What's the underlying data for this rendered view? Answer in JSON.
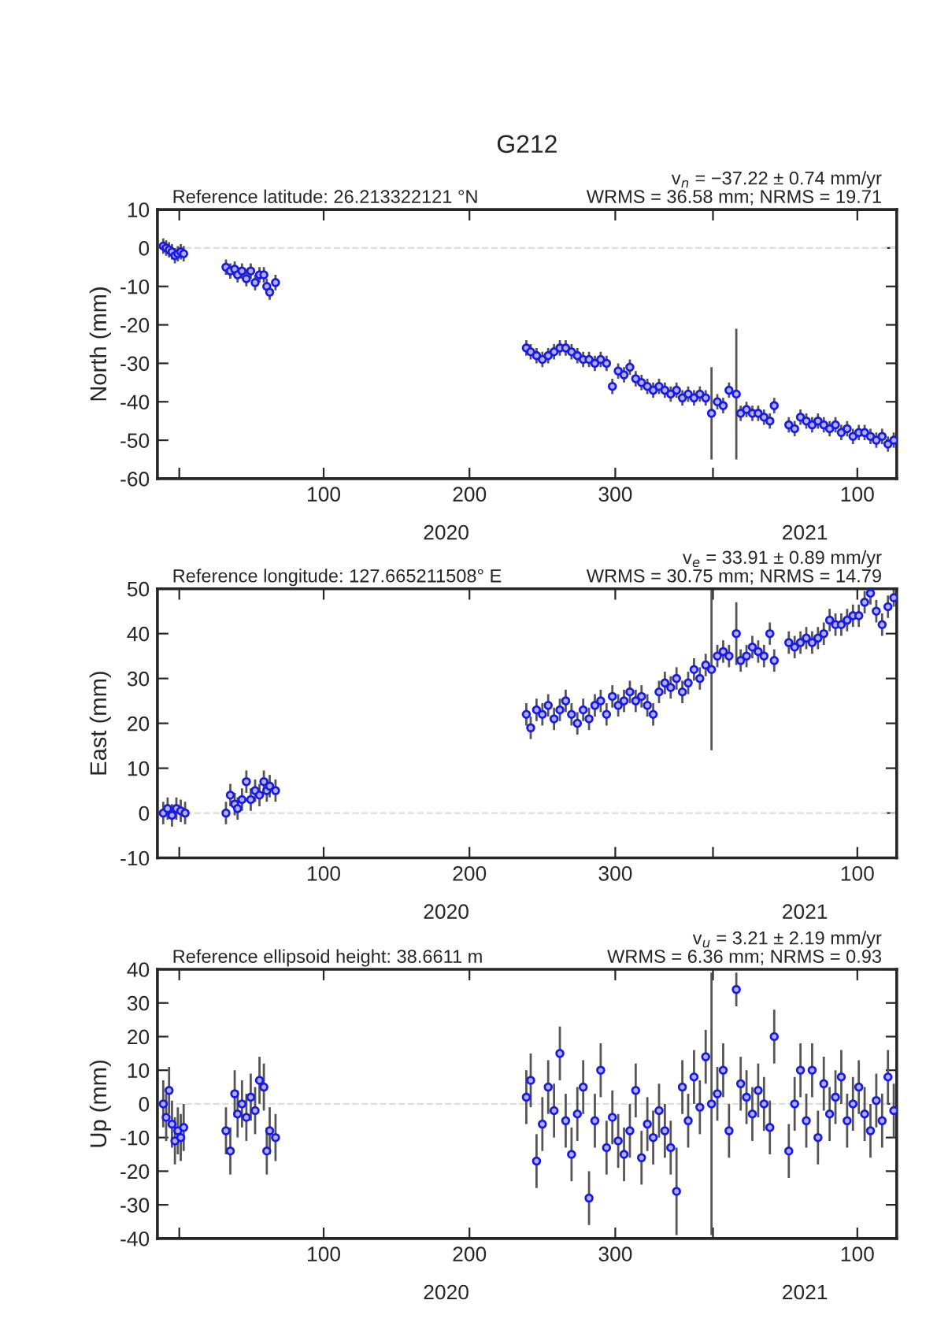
{
  "chart_data": [
    {
      "type": "scatter",
      "title": "G212",
      "ylabel": "North (mm)",
      "annotations": [
        "Reference latitude: 26.213322121 °N",
        "v$_{n}$ = −37.22 ± 0.74 mm/yr",
        "WRMS = 36.58 mm; NRMS = 19.71",
        "2020",
        "2021"
      ],
      "x": [
        "2019-12-21",
        "2019-12-23",
        "2019-12-25",
        "2019-12-27",
        "2019-12-29",
        "2019-12-31",
        "2020-01-02",
        "2020-01-04",
        "2020-02-02",
        "2020-02-05",
        "2020-02-08",
        "2020-02-10",
        "2020-02-13",
        "2020-02-16",
        "2020-02-19",
        "2020-02-22",
        "2020-02-25",
        "2020-02-28",
        "2020-03-01",
        "2020-03-03",
        "2020-03-07",
        "2020-08-26",
        "2020-08-29",
        "2020-09-02",
        "2020-09-06",
        "2020-09-10",
        "2020-09-14",
        "2020-09-18",
        "2020-09-22",
        "2020-09-26",
        "2020-09-30",
        "2020-10-04",
        "2020-10-08",
        "2020-10-12",
        "2020-10-16",
        "2020-10-20",
        "2020-10-24",
        "2020-10-28",
        "2020-11-01",
        "2020-11-05",
        "2020-11-09",
        "2020-11-13",
        "2020-11-17",
        "2020-11-21",
        "2020-11-25",
        "2020-11-29",
        "2020-12-03",
        "2020-12-07",
        "2020-12-11",
        "2020-12-15",
        "2020-12-19",
        "2020-12-23",
        "2020-12-27",
        "2020-12-31",
        "2021-01-04",
        "2021-01-08",
        "2021-01-12",
        "2021-01-17",
        "2021-01-20",
        "2021-01-24",
        "2021-01-28",
        "2021-02-01",
        "2021-02-05",
        "2021-02-09",
        "2021-02-12",
        "2021-02-22",
        "2021-02-26",
        "2021-03-02",
        "2021-03-06",
        "2021-03-10",
        "2021-03-14",
        "2021-03-18",
        "2021-03-22",
        "2021-03-26",
        "2021-03-30",
        "2021-04-03",
        "2021-04-07",
        "2021-04-11",
        "2021-04-15",
        "2021-04-19",
        "2021-04-23",
        "2021-04-27",
        "2021-05-01",
        "2021-05-05"
      ],
      "values": [
        0.5,
        0,
        -0.5,
        -1,
        -2,
        -1.5,
        -1,
        -1.5,
        -5,
        -6,
        -5.5,
        -7,
        -6,
        -8,
        -6,
        -9,
        -7,
        -7,
        -10,
        -11.5,
        -9,
        -26,
        -27,
        -28,
        -29,
        -28,
        -27,
        -26,
        -26,
        -27,
        -28,
        -29,
        -29,
        -30,
        -29,
        -30,
        -36,
        -32,
        -33,
        -31,
        -34,
        -35,
        -36,
        -37,
        -36,
        -37,
        -38,
        -37,
        -39,
        -38,
        -39,
        -38,
        -39,
        -43,
        -40,
        -41,
        -37,
        -38,
        -43,
        -42,
        -43,
        -43,
        -44,
        -45,
        -41,
        -46,
        -47,
        -44,
        -45,
        -46,
        -45,
        -46,
        -47,
        -46,
        -48,
        -47,
        -49,
        -48,
        -48,
        -49,
        -50,
        -49,
        -51,
        -50
      ],
      "errors": [
        2,
        2,
        2,
        2,
        2,
        2,
        2,
        2,
        2,
        2,
        2,
        2,
        2,
        2,
        2,
        2,
        2,
        2,
        2,
        2,
        2,
        2,
        2,
        2,
        2,
        2,
        2,
        2,
        2,
        2,
        2,
        2,
        2,
        2,
        2,
        2,
        2,
        2,
        2,
        2,
        2,
        2,
        2,
        2,
        2,
        2,
        2,
        2,
        2,
        2,
        2,
        2,
        2,
        12,
        2,
        2,
        2,
        17,
        2,
        2,
        2,
        2,
        2,
        2,
        2,
        2,
        2,
        2,
        2,
        2,
        2,
        2,
        2,
        2,
        2,
        2,
        2,
        2,
        2,
        2,
        2,
        2,
        2,
        2
      ],
      "color": "#1a1ae6",
      "marker": "circle",
      "xlim": [
        "2019-12-17",
        "2021-05-07"
      ],
      "xticks": [
        {
          "value": "2020-01-01",
          "label": null
        },
        {
          "value": "2020-04-09",
          "label": "100"
        },
        {
          "value": "2020-07-18",
          "label": "200"
        },
        {
          "value": "2020-10-26",
          "label": "300"
        },
        {
          "value": "2021-01-01",
          "label": null
        },
        {
          "value": "2021-04-10",
          "label": "100"
        }
      ],
      "ylim": [
        -60,
        10
      ],
      "yticks": [
        -60,
        -50,
        -40,
        -30,
        -20,
        -10,
        0,
        10
      ],
      "ref_lines": [
        {
          "axis": "y",
          "value": 0,
          "color": "#dddddd",
          "line_style": "dashed"
        }
      ]
    },
    {
      "type": "scatter",
      "ylabel": "East (mm)",
      "annotations": [
        "Reference longitude: 127.665211508° E",
        "v$_{e}$ = 33.91 ± 0.89 mm/yr",
        "WRMS = 30.75 mm; NRMS = 14.79",
        "2020",
        "2021"
      ],
      "x": [
        "2019-12-21",
        "2019-12-24",
        "2019-12-27",
        "2019-12-30",
        "2020-01-02",
        "2020-01-05",
        "2020-02-02",
        "2020-02-05",
        "2020-02-08",
        "2020-02-10",
        "2020-02-13",
        "2020-02-16",
        "2020-02-19",
        "2020-02-22",
        "2020-02-25",
        "2020-02-28",
        "2020-03-01",
        "2020-03-03",
        "2020-03-07",
        "2020-08-26",
        "2020-08-29",
        "2020-09-02",
        "2020-09-06",
        "2020-09-10",
        "2020-09-14",
        "2020-09-18",
        "2020-09-22",
        "2020-09-26",
        "2020-09-30",
        "2020-10-04",
        "2020-10-08",
        "2020-10-12",
        "2020-10-16",
        "2020-10-20",
        "2020-10-24",
        "2020-10-28",
        "2020-11-01",
        "2020-11-05",
        "2020-11-09",
        "2020-11-13",
        "2020-11-17",
        "2020-11-21",
        "2020-11-25",
        "2020-11-29",
        "2020-12-03",
        "2020-12-07",
        "2020-12-11",
        "2020-12-15",
        "2020-12-19",
        "2020-12-23",
        "2020-12-27",
        "2020-12-31",
        "2021-01-04",
        "2021-01-08",
        "2021-01-12",
        "2021-01-17",
        "2021-01-20",
        "2021-01-24",
        "2021-01-28",
        "2021-02-01",
        "2021-02-05",
        "2021-02-09",
        "2021-02-12",
        "2021-02-22",
        "2021-02-26",
        "2021-03-02",
        "2021-03-06",
        "2021-03-10",
        "2021-03-14",
        "2021-03-18",
        "2021-03-22",
        "2021-03-26",
        "2021-03-30",
        "2021-04-03",
        "2021-04-07",
        "2021-04-11",
        "2021-04-15",
        "2021-04-19",
        "2021-04-23",
        "2021-04-27",
        "2021-05-01",
        "2021-05-05"
      ],
      "values": [
        0,
        1,
        -0.5,
        1,
        0.5,
        0,
        0,
        4,
        2,
        1,
        3,
        7,
        3,
        5,
        4,
        7,
        5,
        6,
        5,
        22,
        19,
        23,
        22,
        24,
        21,
        23,
        25,
        22,
        20,
        23,
        21,
        24,
        25,
        22,
        26,
        24,
        25,
        27,
        25,
        26,
        24,
        22,
        27,
        29,
        28,
        30,
        27,
        29,
        32,
        30,
        33,
        32,
        35,
        36,
        35,
        40,
        34,
        35,
        37,
        36,
        35,
        40,
        34,
        38,
        37,
        38,
        39,
        38,
        39,
        40,
        43,
        42,
        42,
        43,
        44,
        44,
        47,
        49,
        45,
        42,
        46,
        48
      ],
      "errors": [
        2.5,
        2.5,
        2.5,
        2.5,
        2.5,
        2.5,
        2.5,
        2.5,
        2.5,
        2.5,
        2.5,
        2.5,
        2.5,
        2.5,
        2.5,
        2.5,
        2.5,
        2.5,
        2.5,
        2.5,
        2.5,
        2.5,
        2.5,
        2.5,
        2.5,
        2.5,
        2.5,
        2.5,
        2.5,
        2.5,
        2.5,
        2.5,
        2.5,
        2.5,
        2.5,
        2.5,
        2.5,
        2.5,
        2.5,
        2.5,
        2.5,
        2.5,
        2.5,
        2.5,
        2.5,
        2.5,
        2.5,
        2.5,
        2.5,
        2.5,
        2.5,
        18,
        2.5,
        2.5,
        2.5,
        7,
        2.5,
        2.5,
        2.5,
        2.5,
        2.5,
        2.5,
        2.5,
        2.5,
        2.5,
        2.5,
        2.5,
        2.5,
        2.5,
        2.5,
        2.5,
        2.5,
        2.5,
        2.5,
        2.5,
        2.5,
        2.5,
        2.5,
        2.5,
        2.5,
        2.5,
        2
      ],
      "color": "#1a1ae6",
      "marker": "circle",
      "xlim": [
        "2019-12-17",
        "2021-05-07"
      ],
      "xticks": [
        {
          "value": "2020-01-01",
          "label": null
        },
        {
          "value": "2020-04-09",
          "label": "100"
        },
        {
          "value": "2020-07-18",
          "label": "200"
        },
        {
          "value": "2020-10-26",
          "label": "300"
        },
        {
          "value": "2021-01-01",
          "label": null
        },
        {
          "value": "2021-04-10",
          "label": "100"
        }
      ],
      "ylim": [
        -10,
        50
      ],
      "yticks": [
        -10,
        0,
        10,
        20,
        30,
        40,
        50
      ],
      "ref_lines": [
        {
          "axis": "y",
          "value": 0,
          "color": "#dddddd",
          "line_style": "dashed"
        }
      ]
    },
    {
      "type": "scatter",
      "ylabel": "Up (mm)",
      "annotations": [
        "Reference ellipsoid height: 38.6611 m",
        "v$_{u}$ = 3.21 ± 2.19 mm/yr",
        "WRMS = 6.36 mm; NRMS = 0.93",
        "2020",
        "2021"
      ],
      "x": [
        "2019-12-21",
        "2019-12-23",
        "2019-12-25",
        "2019-12-27",
        "2019-12-29",
        "2019-12-31",
        "2020-01-02",
        "2020-01-04",
        "2020-02-02",
        "2020-02-05",
        "2020-02-08",
        "2020-02-10",
        "2020-02-13",
        "2020-02-16",
        "2020-02-19",
        "2020-02-22",
        "2020-02-25",
        "2020-02-28",
        "2020-03-01",
        "2020-03-03",
        "2020-03-07",
        "2020-08-26",
        "2020-08-29",
        "2020-09-02",
        "2020-09-06",
        "2020-09-10",
        "2020-09-14",
        "2020-09-18",
        "2020-09-22",
        "2020-09-26",
        "2020-09-30",
        "2020-10-04",
        "2020-10-08",
        "2020-10-12",
        "2020-10-16",
        "2020-10-20",
        "2020-10-24",
        "2020-10-28",
        "2020-11-01",
        "2020-11-05",
        "2020-11-09",
        "2020-11-13",
        "2020-11-17",
        "2020-11-21",
        "2020-11-25",
        "2020-11-29",
        "2020-12-03",
        "2020-12-07",
        "2020-12-11",
        "2020-12-15",
        "2020-12-19",
        "2020-12-23",
        "2020-12-27",
        "2020-12-31",
        "2021-01-04",
        "2021-01-08",
        "2021-01-12",
        "2021-01-17",
        "2021-01-20",
        "2021-01-24",
        "2021-01-28",
        "2021-02-01",
        "2021-02-05",
        "2021-02-09",
        "2021-02-12",
        "2021-02-22",
        "2021-02-26",
        "2021-03-02",
        "2021-03-06",
        "2021-03-10",
        "2021-03-14",
        "2021-03-18",
        "2021-03-22",
        "2021-03-26",
        "2021-03-30",
        "2021-04-03",
        "2021-04-07",
        "2021-04-11",
        "2021-04-15",
        "2021-04-19",
        "2021-04-23",
        "2021-04-27",
        "2021-05-01",
        "2021-05-05"
      ],
      "values": [
        0,
        -4,
        4,
        -6,
        -11,
        -8,
        -10,
        -7,
        -8,
        -14,
        3,
        -3,
        0,
        -4,
        2,
        -2,
        7,
        5,
        -14,
        -8,
        -10,
        2,
        7,
        -17,
        -6,
        5,
        -2,
        15,
        -5,
        -15,
        -3,
        5,
        -28,
        -5,
        10,
        -13,
        -4,
        -11,
        -15,
        -8,
        4,
        -16,
        -6,
        -10,
        -2,
        -8,
        -13,
        -26,
        5,
        -5,
        8,
        -1,
        14,
        0,
        3,
        10,
        -8,
        34,
        6,
        2,
        -3,
        4,
        0,
        -7,
        20,
        -14,
        0,
        10,
        -5,
        10,
        -10,
        6,
        -3,
        2,
        8,
        -5,
        0,
        5,
        -3,
        -8,
        1,
        -5,
        8,
        -2
      ],
      "errors": [
        7,
        7,
        7,
        7,
        7,
        7,
        7,
        7,
        7,
        7,
        7,
        7,
        7,
        7,
        7,
        7,
        7,
        7,
        7,
        7,
        7,
        8,
        8,
        8,
        8,
        8,
        8,
        8,
        8,
        8,
        8,
        8,
        8,
        8,
        8,
        8,
        8,
        8,
        8,
        8,
        8,
        8,
        8,
        8,
        8,
        8,
        8,
        13,
        8,
        8,
        8,
        8,
        8,
        39,
        8,
        8,
        8,
        5,
        8,
        8,
        8,
        8,
        8,
        8,
        8,
        8,
        8,
        8,
        8,
        8,
        8,
        8,
        8,
        8,
        8,
        8,
        8,
        8,
        8,
        8,
        8,
        8,
        8,
        8
      ],
      "color": "#1a1ae6",
      "marker": "circle",
      "xlim": [
        "2019-12-17",
        "2021-05-07"
      ],
      "xticks": [
        {
          "value": "2020-01-01",
          "label": null
        },
        {
          "value": "2020-04-09",
          "label": "100"
        },
        {
          "value": "2020-07-18",
          "label": "200"
        },
        {
          "value": "2020-10-26",
          "label": "300"
        },
        {
          "value": "2021-01-01",
          "label": null
        },
        {
          "value": "2021-04-10",
          "label": "100"
        }
      ],
      "ylim": [
        -40,
        40
      ],
      "yticks": [
        -40,
        -30,
        -20,
        -10,
        0,
        10,
        20,
        30,
        40
      ],
      "ref_lines": [
        {
          "axis": "y",
          "value": 0,
          "color": "#dddddd",
          "line_style": "dashed"
        }
      ]
    }
  ]
}
